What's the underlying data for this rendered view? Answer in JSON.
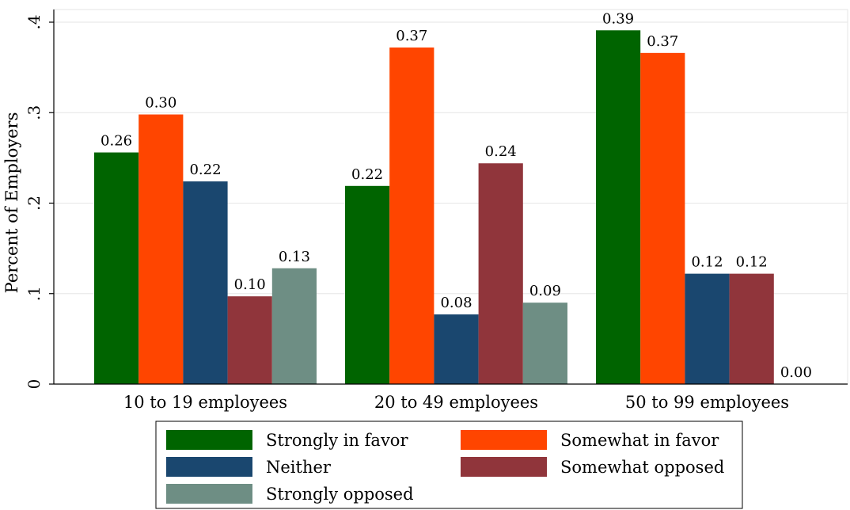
{
  "chart_data": {
    "type": "bar",
    "ylabel": "Percent of Employers",
    "xlabel": "",
    "ylim": [
      0,
      0.4
    ],
    "yticks": [
      {
        "value": 0,
        "label": "0"
      },
      {
        "value": 0.1,
        "label": ".1"
      },
      {
        "value": 0.2,
        "label": ".2"
      },
      {
        "value": 0.3,
        "label": ".3"
      },
      {
        "value": 0.4,
        "label": ".4"
      }
    ],
    "categories": [
      "10 to 19 employees",
      "20 to 49 employees",
      "50 to 99 employees"
    ],
    "series": [
      {
        "name": "Strongly in favor",
        "color": "#006400",
        "values": [
          0.256,
          0.219,
          0.391
        ],
        "labels": [
          "0.26",
          "0.22",
          "0.39"
        ]
      },
      {
        "name": "Somewhat in favor",
        "color": "#FF4500",
        "values": [
          0.298,
          0.372,
          0.366
        ],
        "labels": [
          "0.30",
          "0.37",
          "0.37"
        ]
      },
      {
        "name": "Neither",
        "color": "#1A476F",
        "values": [
          0.224,
          0.077,
          0.122
        ],
        "labels": [
          "0.22",
          "0.08",
          "0.12"
        ]
      },
      {
        "name": "Somewhat opposed",
        "color": "#90353B",
        "values": [
          0.097,
          0.244,
          0.122
        ],
        "labels": [
          "0.10",
          "0.24",
          "0.12"
        ]
      },
      {
        "name": "Strongly opposed",
        "color": "#6E8E84",
        "values": [
          0.128,
          0.09,
          0.0
        ],
        "labels": [
          "0.13",
          "0.09",
          "0.00"
        ]
      }
    ],
    "grid": true,
    "legend_position": "bottom"
  }
}
